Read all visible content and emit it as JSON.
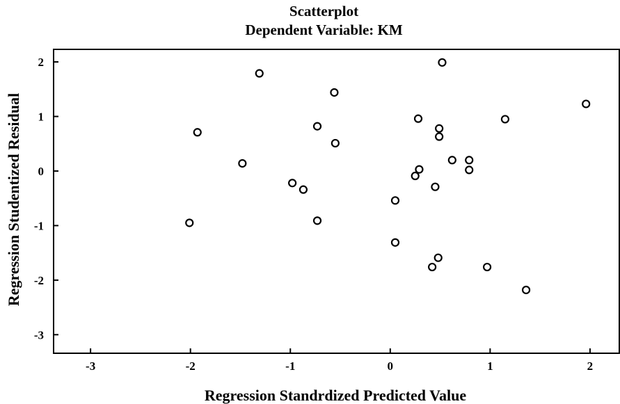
{
  "chart_data": {
    "type": "scatter",
    "title": "Scatterplot",
    "subtitle": "Dependent Variable: KM",
    "xlabel": "Regression Standrdized Predicted Value",
    "ylabel": "Regression Studentized Residual",
    "xlim": [
      -3.37,
      2.3
    ],
    "ylim": [
      -3.34,
      2.23
    ],
    "xticks": [
      -3,
      -2,
      -1,
      0,
      1,
      2
    ],
    "yticks": [
      -3,
      -2,
      -1,
      0,
      1,
      2
    ],
    "xtick_labels": [
      "-3",
      "-2",
      "-1",
      "0",
      "1",
      "2"
    ],
    "ytick_labels": [
      "-3",
      "-2",
      "-1",
      "0",
      "1",
      "2"
    ],
    "grid": false,
    "marker": "open-circle",
    "points": [
      {
        "x": -2.01,
        "y": -0.95
      },
      {
        "x": -1.93,
        "y": 0.71
      },
      {
        "x": -1.48,
        "y": 0.14
      },
      {
        "x": -1.31,
        "y": 1.79
      },
      {
        "x": -0.98,
        "y": -0.22
      },
      {
        "x": -0.87,
        "y": -0.34
      },
      {
        "x": -0.73,
        "y": 0.82
      },
      {
        "x": -0.73,
        "y": -0.91
      },
      {
        "x": -0.56,
        "y": 1.44
      },
      {
        "x": -0.55,
        "y": 0.51
      },
      {
        "x": 0.05,
        "y": -0.54
      },
      {
        "x": 0.05,
        "y": -1.31
      },
      {
        "x": 0.25,
        "y": -0.09
      },
      {
        "x": 0.28,
        "y": 0.96
      },
      {
        "x": 0.29,
        "y": 0.03
      },
      {
        "x": 0.42,
        "y": -1.76
      },
      {
        "x": 0.45,
        "y": -0.29
      },
      {
        "x": 0.48,
        "y": -1.59
      },
      {
        "x": 0.49,
        "y": 0.78
      },
      {
        "x": 0.49,
        "y": 0.63
      },
      {
        "x": 0.52,
        "y": 1.99
      },
      {
        "x": 0.62,
        "y": 0.2
      },
      {
        "x": 0.79,
        "y": 0.2
      },
      {
        "x": 0.79,
        "y": 0.02
      },
      {
        "x": 0.97,
        "y": -1.76
      },
      {
        "x": 1.15,
        "y": 0.95
      },
      {
        "x": 1.36,
        "y": -2.18
      },
      {
        "x": 1.96,
        "y": 1.23
      }
    ]
  }
}
